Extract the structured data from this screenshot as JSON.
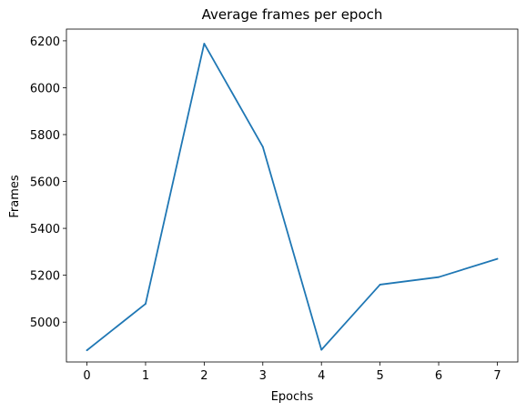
{
  "chart_data": {
    "type": "line",
    "title": "Average frames per epoch",
    "xlabel": "Epochs",
    "ylabel": "Frames",
    "xlim": [
      -0.35,
      7.35
    ],
    "ylim": [
      4830,
      6250
    ],
    "xticks": [
      0,
      1,
      2,
      3,
      4,
      5,
      6,
      7
    ],
    "yticks": [
      5000,
      5200,
      5400,
      5600,
      5800,
      6000,
      6200
    ],
    "grid": false,
    "series": [
      {
        "color": "#1f77b4",
        "x": [
          0,
          1,
          2,
          3,
          4,
          5,
          6,
          7
        ],
        "y": [
          4880,
          5078,
          6188,
          5748,
          4882,
          5160,
          5192,
          5270
        ]
      }
    ]
  }
}
